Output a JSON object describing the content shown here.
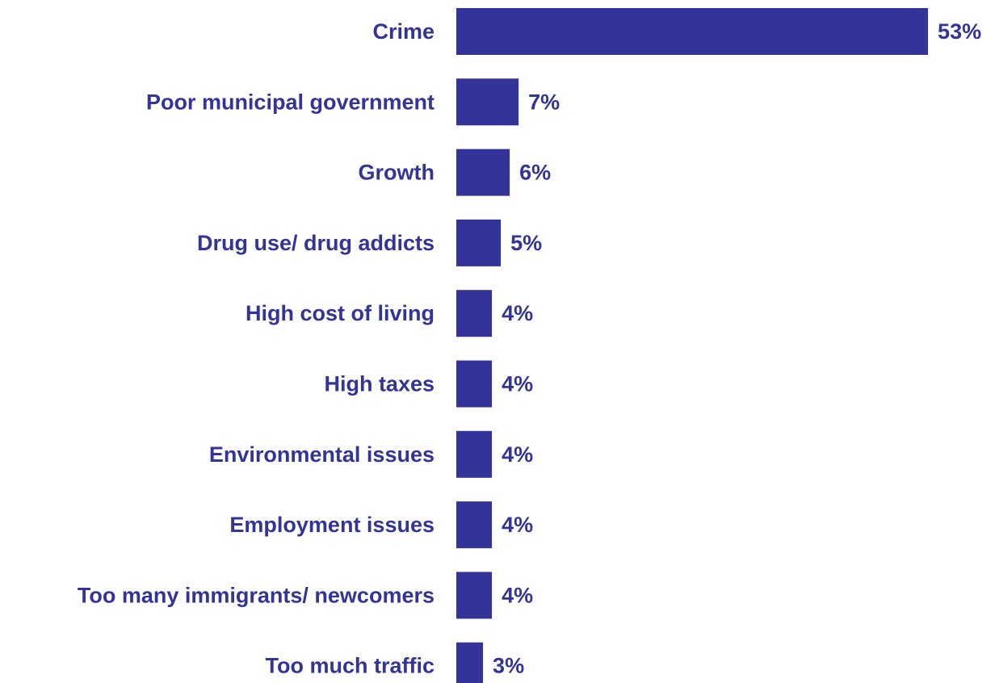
{
  "chart_data": {
    "type": "bar",
    "orientation": "horizontal",
    "categories": [
      "Crime",
      "Poor municipal government",
      "Growth",
      "Drug use/ drug addicts",
      "High cost of living",
      "High taxes",
      "Environmental issues",
      "Employment issues",
      "Too many immigrants/ newcomers",
      "Too much traffic"
    ],
    "values": [
      53,
      7,
      6,
      5,
      4,
      4,
      4,
      4,
      4,
      3
    ],
    "value_labels": [
      "53%",
      "7%",
      "6%",
      "5%",
      "4%",
      "4%",
      "4%",
      "4%",
      "4%",
      "3%"
    ],
    "unit": "%",
    "title": "",
    "xlabel": "",
    "ylabel": "",
    "grid": false,
    "legend": "none",
    "bar_color": "#333399",
    "text_color": "#333399"
  }
}
